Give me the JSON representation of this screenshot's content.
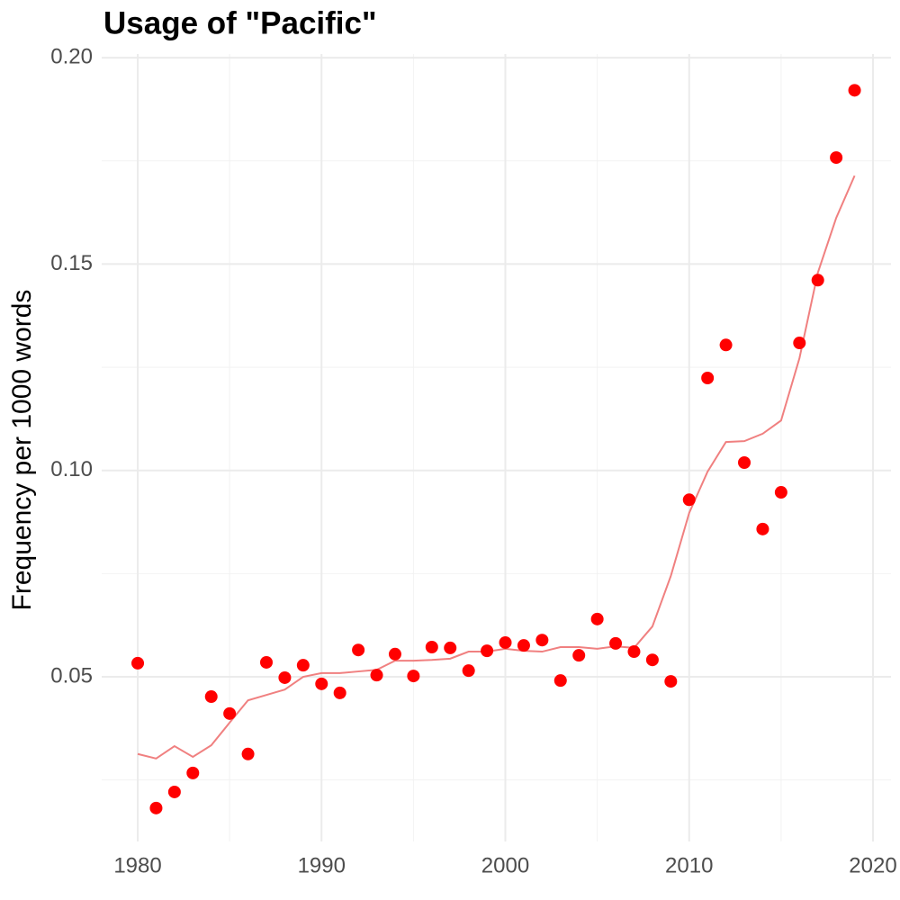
{
  "chart_data": {
    "type": "scatter",
    "title": "Usage of \"Pacific\"",
    "y_label": "Frequency per 1000 words",
    "x": [
      1980,
      1981,
      1982,
      1983,
      1984,
      1985,
      1986,
      1987,
      1988,
      1989,
      1990,
      1991,
      1992,
      1993,
      1994,
      1995,
      1996,
      1997,
      1998,
      1999,
      2000,
      2001,
      2002,
      2003,
      2004,
      2005,
      2006,
      2007,
      2008,
      2009,
      2010,
      2011,
      2012,
      2013,
      2014,
      2015,
      2016,
      2017,
      2018,
      2019
    ],
    "series": [
      {
        "type": "scatter",
        "color": "#ff0000",
        "values": [
          0.0533,
          0.0182,
          0.0221,
          0.0267,
          0.0452,
          0.0411,
          0.0313,
          0.0535,
          0.0498,
          0.0528,
          0.0483,
          0.0461,
          0.0565,
          0.0504,
          0.0555,
          0.0502,
          0.0572,
          0.057,
          0.0515,
          0.0563,
          0.0583,
          0.0576,
          0.0589,
          0.0491,
          0.0552,
          0.064,
          0.0581,
          0.0561,
          0.0541,
          0.0489,
          0.0929,
          0.1224,
          0.1304,
          0.1019,
          0.0858,
          0.0947,
          0.1309,
          0.1461,
          0.1758,
          0.1921
        ]
      },
      {
        "type": "line",
        "color": "#f08080",
        "values": [
          0.0313,
          0.0302,
          0.0332,
          0.0306,
          0.0334,
          0.0389,
          0.0443,
          0.0456,
          0.0469,
          0.05,
          0.0509,
          0.0509,
          0.0513,
          0.0517,
          0.0539,
          0.0539,
          0.0541,
          0.0544,
          0.0561,
          0.0561,
          0.0568,
          0.0563,
          0.0561,
          0.0572,
          0.0572,
          0.0568,
          0.0574,
          0.057,
          0.0622,
          0.0744,
          0.0897,
          0.0997,
          0.1069,
          0.1071,
          0.1089,
          0.1121,
          0.1272,
          0.1479,
          0.1612,
          0.1714
        ]
      }
    ],
    "xlim": [
      1978.04,
      2020.98
    ],
    "ylim": [
      0.0101,
      0.2009
    ],
    "xticks": [
      1980,
      1990,
      2000,
      2010,
      2020
    ],
    "yticks": [
      {
        "value": 0.05,
        "label": "0.05"
      },
      {
        "value": 0.1,
        "label": "0.10"
      },
      {
        "value": 0.15,
        "label": "0.15"
      },
      {
        "value": 0.2,
        "label": "0.20"
      }
    ],
    "minor_xticks": [
      1985,
      1995,
      2005,
      2015
    ],
    "minor_yticks": [
      0.025,
      0.075,
      0.125,
      0.175
    ],
    "grid": true
  }
}
